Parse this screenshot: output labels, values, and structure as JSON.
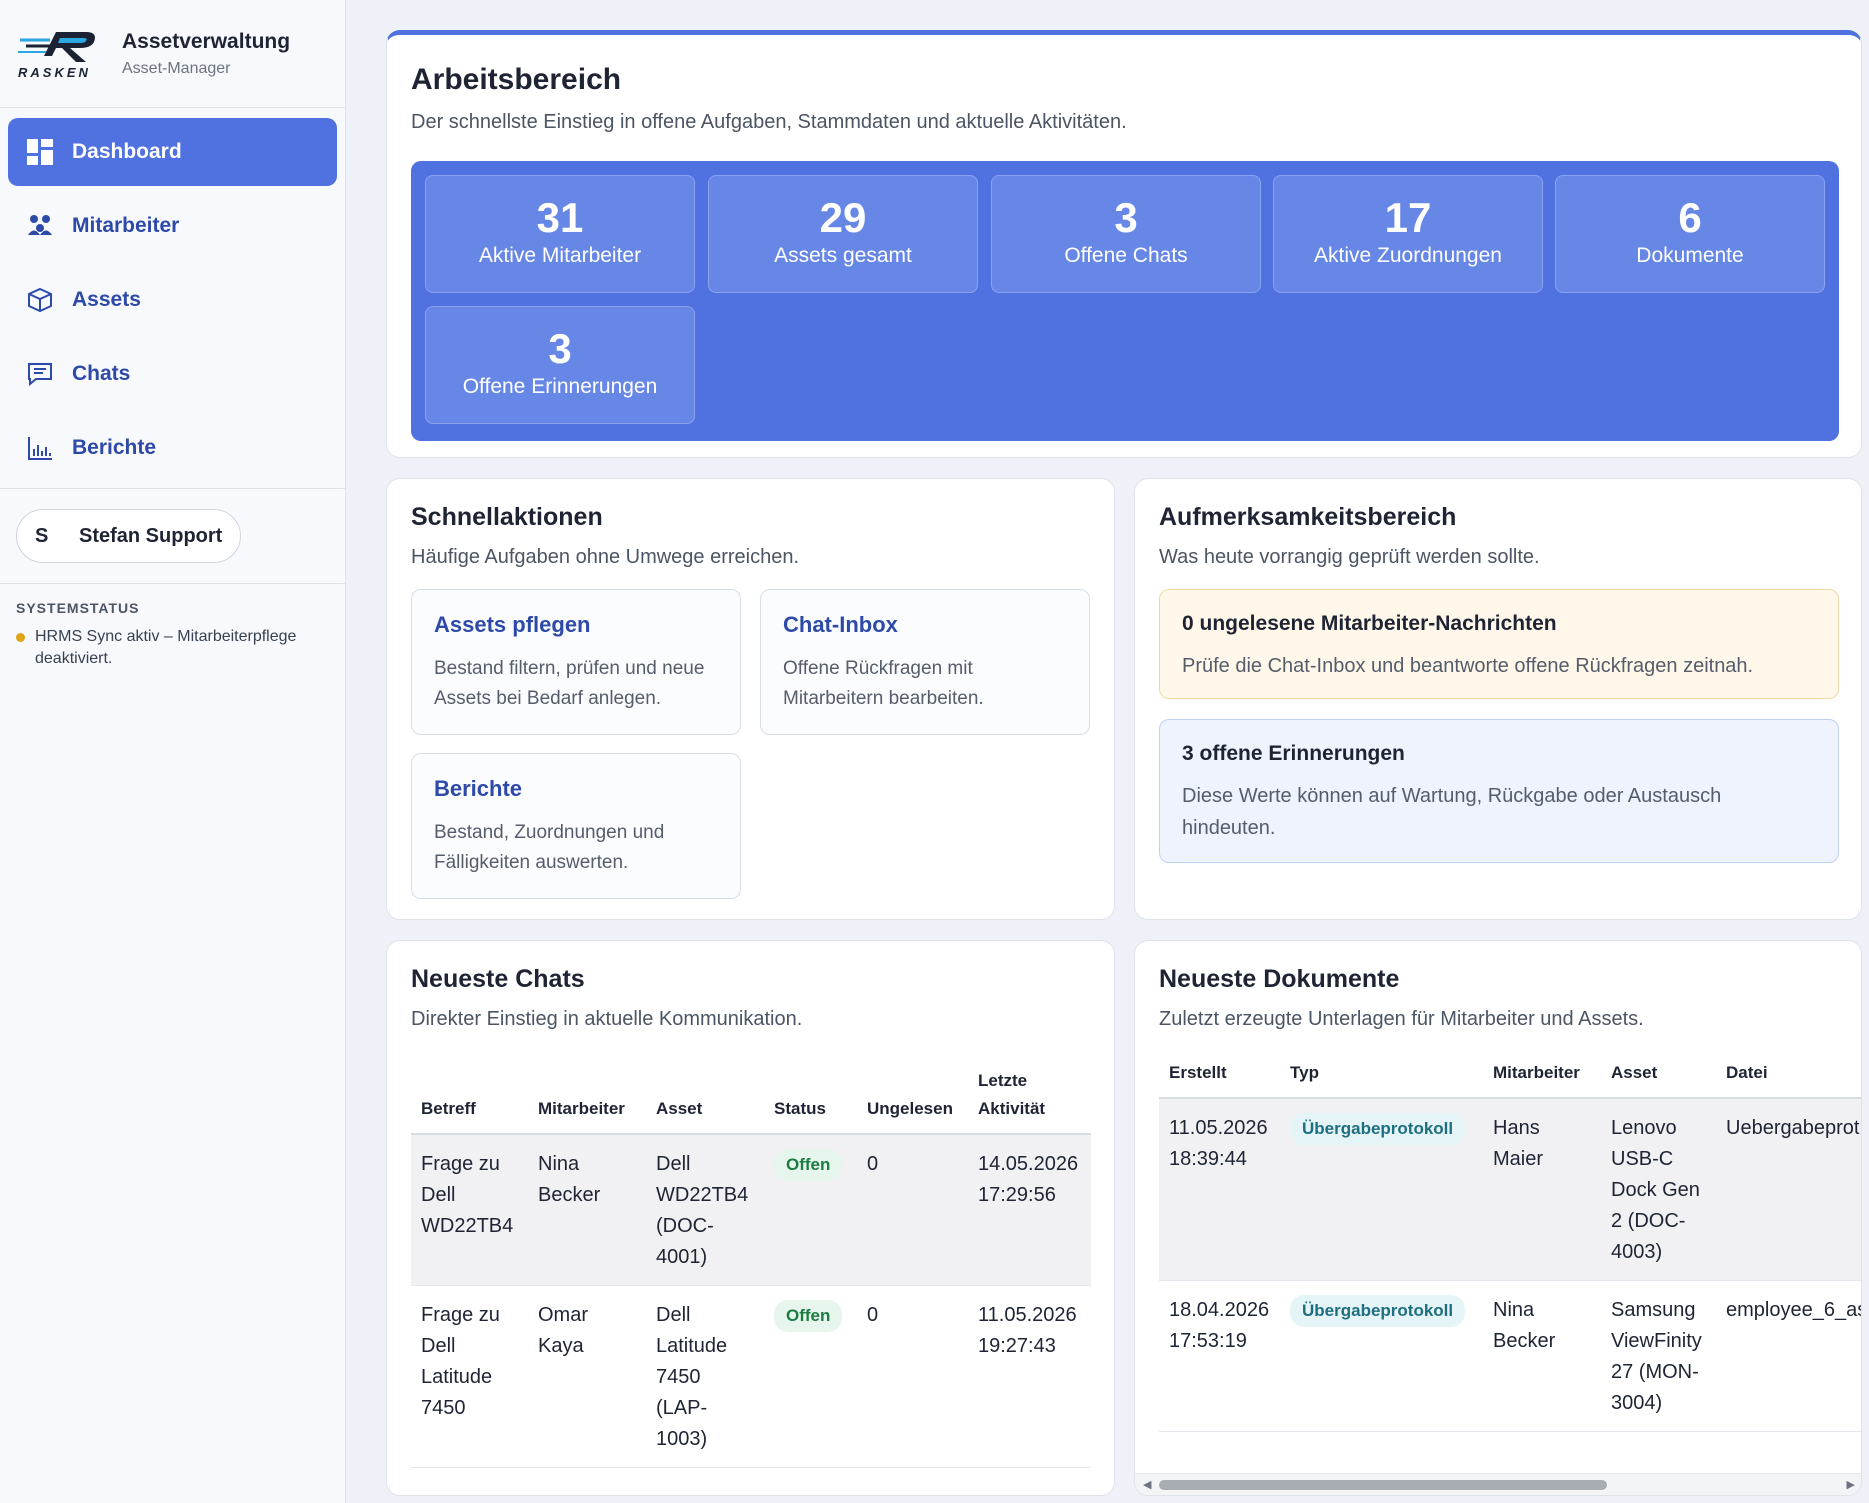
{
  "brand": {
    "title": "Assetverwaltung",
    "subtitle": "Asset-Manager",
    "logo_text": "RASKEN"
  },
  "nav": [
    {
      "label": "Dashboard",
      "icon": "dashboard-icon"
    },
    {
      "label": "Mitarbeiter",
      "icon": "users-icon"
    },
    {
      "label": "Assets",
      "icon": "box-icon"
    },
    {
      "label": "Chats",
      "icon": "chat-icon"
    },
    {
      "label": "Berichte",
      "icon": "bar-chart-icon"
    }
  ],
  "user": {
    "initial": "S",
    "name": "Stefan Support"
  },
  "system_status": {
    "title": "SYSTEMSTATUS",
    "message": "HRMS Sync aktiv – Mitarbeiterpflege deaktiviert.",
    "color": "#e0a313"
  },
  "workspace": {
    "title": "Arbeitsbereich",
    "subtitle": "Der schnellste Einstieg in offene Aufgaben, Stammdaten und aktuelle Aktivitäten.",
    "stats": [
      {
        "value": "31",
        "label": "Aktive Mitarbeiter"
      },
      {
        "value": "29",
        "label": "Assets gesamt"
      },
      {
        "value": "3",
        "label": "Offene Chats"
      },
      {
        "value": "17",
        "label": "Aktive Zuordnungen"
      },
      {
        "value": "6",
        "label": "Dokumente"
      },
      {
        "value": "3",
        "label": "Offene Erinnerungen"
      }
    ]
  },
  "quick_actions": {
    "title": "Schnellaktionen",
    "subtitle": "Häufige Aufgaben ohne Umwege erreichen.",
    "items": [
      {
        "title": "Assets pflegen",
        "desc": "Bestand filtern, prüfen und neue Assets bei Bedarf anlegen."
      },
      {
        "title": "Chat-Inbox",
        "desc": "Offene Rückfragen mit Mitarbeitern bearbeiten."
      },
      {
        "title": "Berichte",
        "desc": "Bestand, Zuordnungen und Fälligkeiten auswerten."
      }
    ]
  },
  "attention": {
    "title": "Aufmerksamkeitsbereich",
    "subtitle": "Was heute vorrangig geprüft werden sollte.",
    "alerts": [
      {
        "title": "0 ungelesene Mitarbeiter-Nachrichten",
        "desc": "Prüfe die Chat-Inbox und beantworte offene Rückfragen zeitnah."
      },
      {
        "title": "3 offene Erinnerungen",
        "desc": "Diese Werte können auf Wartung, Rückgabe oder Austausch hindeuten."
      }
    ]
  },
  "chats": {
    "title": "Neueste Chats",
    "subtitle": "Direkter Einstieg in aktuelle Kommunikation.",
    "columns": [
      "Betreff",
      "Mitarbeiter",
      "Asset",
      "Status",
      "Ungelesen",
      "Letzte Aktivität"
    ],
    "rows": [
      {
        "subject": "Frage zu Dell WD22TB4",
        "employee": "Nina Becker",
        "asset": "Dell WD22TB4 (DOC-4001)",
        "status": "Offen",
        "unread": "0",
        "last": "14.05.2026 17:29:56"
      },
      {
        "subject": "Frage zu Dell Latitude 7450",
        "employee": "Omar Kaya",
        "asset": "Dell Latitude 7450 (LAP-1003)",
        "status": "Offen",
        "unread": "0",
        "last": "11.05.2026 19:27:43"
      }
    ]
  },
  "docs": {
    "title": "Neueste Dokumente",
    "subtitle": "Zuletzt erzeugte Unterlagen für Mitarbeiter und Assets.",
    "columns": [
      "Erstellt",
      "Typ",
      "Mitarbeiter",
      "Asset",
      "Datei"
    ],
    "rows": [
      {
        "created": "11.05.2026 18:39:44",
        "type": "Übergabeprotokoll",
        "employee": "Hans Maier",
        "asset": "Lenovo USB-C Dock Gen 2 (DOC-4003)",
        "file": "Uebergabeprot"
      },
      {
        "created": "18.04.2026 17:53:19",
        "type": "Übergabeprotokoll",
        "employee": "Nina Becker",
        "asset": "Samsung ViewFinity 27 (MON-3004)",
        "file": "employee_6_as"
      }
    ]
  },
  "colors": {
    "accent": "#5072e0",
    "link": "#2e4aa8",
    "success": "#1b7c43",
    "warn_bg": "#fff7ea",
    "info_bg": "#eef3fd"
  }
}
